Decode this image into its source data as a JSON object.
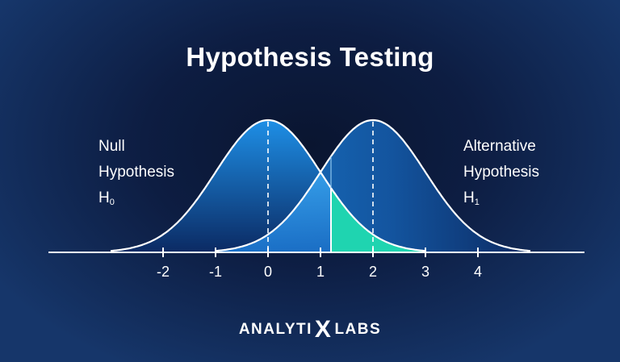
{
  "title": "Hypothesis Testing",
  "null_label": {
    "line1": "Null",
    "line2": "Hypothesis",
    "symbol": "H",
    "sub": "0"
  },
  "alt_label": {
    "line1": "Alternative",
    "line2": "Hypothesis",
    "symbol": "H",
    "sub": "1"
  },
  "axis": {
    "ticks": [
      "-2",
      "-1",
      "0",
      "1",
      "2",
      "3",
      "4"
    ]
  },
  "distributions": {
    "null_mean": 0,
    "alt_mean": 2,
    "critical_value": 1.2
  },
  "colors": {
    "background": "#0d1d42",
    "curve_fill": "#1f8fe0",
    "beta_region": "#1fd4b0",
    "line": "#ffffff"
  },
  "brand": {
    "left": "ANALYTI",
    "mark": "X",
    "right": "LABS"
  }
}
